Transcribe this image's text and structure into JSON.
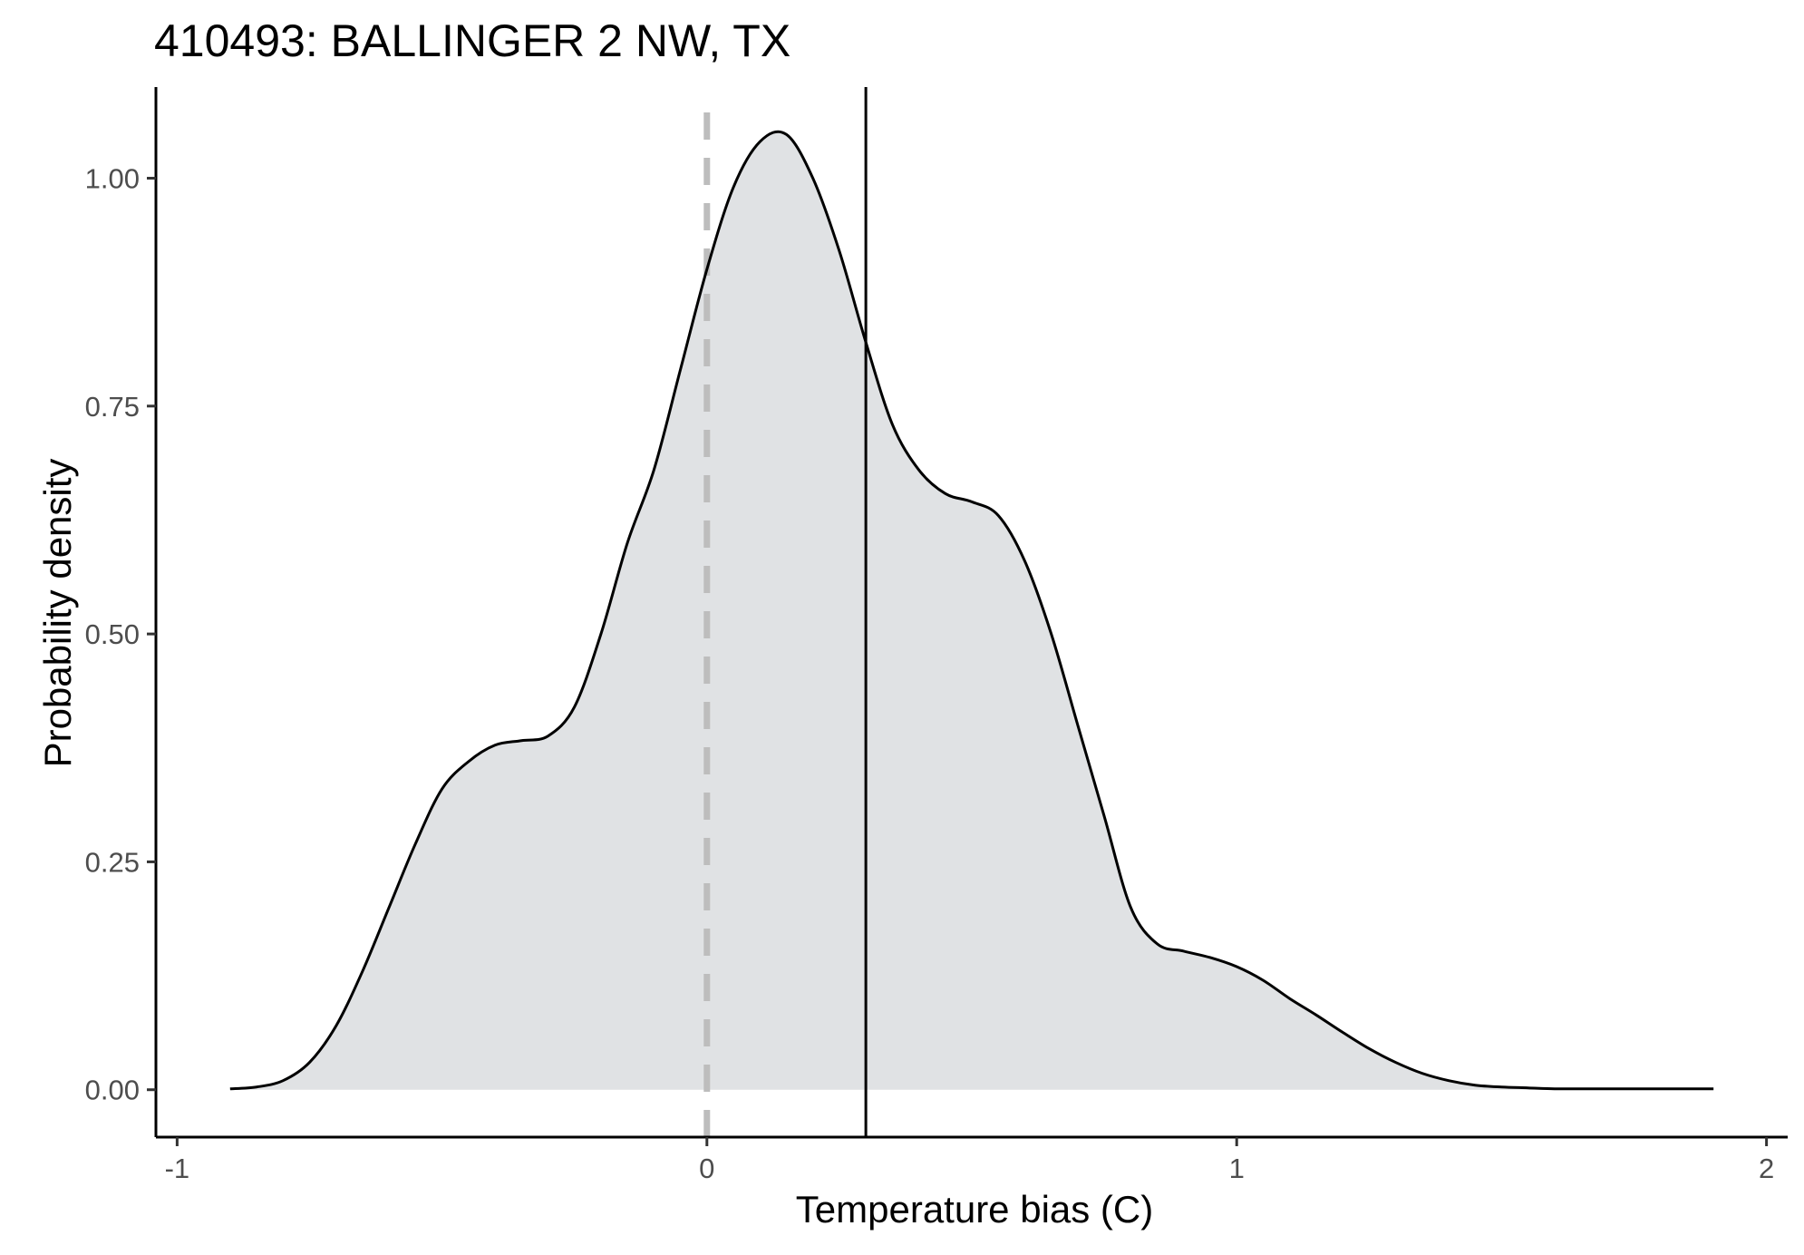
{
  "chart_data": {
    "type": "area",
    "title": "410493: BALLINGER 2 NW, TX",
    "xlabel": "Temperature bias (C)",
    "ylabel": "Probability density",
    "xlim": [
      -1.04,
      2.04
    ],
    "ylim": [
      -0.052,
      1.1
    ],
    "x_ticks": [
      -1,
      0,
      1,
      2
    ],
    "x_tick_labels": [
      "-1",
      "0",
      "1",
      "2"
    ],
    "y_ticks": [
      0,
      0.25,
      0.5,
      0.75,
      1
    ],
    "y_tick_labels": [
      "0.00",
      "0.25",
      "0.50",
      "0.75",
      "1.00"
    ],
    "grid": false,
    "fill_color": "#e0e2e4",
    "line_color": "#000000",
    "reference_lines": [
      {
        "x": 0,
        "style": "dashed",
        "color": "#bdbdbd"
      },
      {
        "x": 0.3,
        "style": "solid",
        "color": "#000000"
      }
    ],
    "x": [
      -0.9,
      -0.85,
      -0.8,
      -0.75,
      -0.7,
      -0.65,
      -0.6,
      -0.55,
      -0.5,
      -0.45,
      -0.4,
      -0.35,
      -0.3,
      -0.25,
      -0.2,
      -0.15,
      -0.1,
      -0.05,
      0,
      0.05,
      0.1,
      0.15,
      0.2,
      0.25,
      0.3,
      0.35,
      0.4,
      0.45,
      0.5,
      0.55,
      0.6,
      0.65,
      0.7,
      0.75,
      0.8,
      0.85,
      0.9,
      0.95,
      1,
      1.05,
      1.1,
      1.15,
      1.2,
      1.25,
      1.3,
      1.35,
      1.4,
      1.45,
      1.5,
      1.55,
      1.6,
      1.65,
      1.7,
      1.75,
      1.8,
      1.85,
      1.9
    ],
    "y": [
      0.001,
      0.003,
      0.01,
      0.03,
      0.07,
      0.13,
      0.2,
      0.27,
      0.33,
      0.36,
      0.378,
      0.383,
      0.388,
      0.42,
      0.5,
      0.6,
      0.68,
      0.79,
      0.9,
      0.99,
      1.04,
      1.048,
      1.0,
      0.92,
      0.82,
      0.73,
      0.68,
      0.654,
      0.645,
      0.63,
      0.58,
      0.5,
      0.4,
      0.3,
      0.2,
      0.16,
      0.152,
      0.145,
      0.135,
      0.12,
      0.1,
      0.082,
      0.063,
      0.045,
      0.03,
      0.018,
      0.01,
      0.005,
      0.003,
      0.002,
      0.001,
      0.001,
      0.001,
      0.001,
      0.001,
      0.001,
      0.001
    ]
  }
}
